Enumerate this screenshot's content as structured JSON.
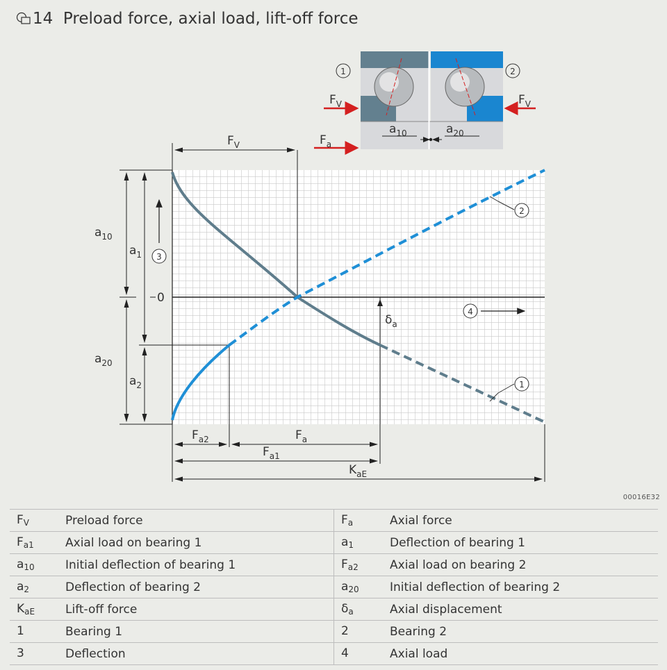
{
  "figure": {
    "caption_number": "14",
    "caption_text": "Preload force, axial load, lift-off force",
    "figure_id": "00016E32"
  },
  "diagram_labels": {
    "bearing1_callout": "1",
    "bearing2_callout": "2",
    "deflection_callout": "3",
    "axial_load_callout": "4",
    "preload_left": "F",
    "preload_left_sub": "V",
    "preload_right": "F",
    "preload_right_sub": "V",
    "axial_force_arrow": "F",
    "axial_force_arrow_sub": "a",
    "a10_small": "a",
    "a10_small_sub": "10",
    "a20_small": "a",
    "a20_small_sub": "20",
    "fv_top": "F",
    "fv_top_sub": "V",
    "a10": "a",
    "a10_sub": "10",
    "a1": "a",
    "a1_sub": "1",
    "zero": "0",
    "a20": "a",
    "a20_sub": "20",
    "a2": "a",
    "a2_sub": "2",
    "delta_a": "δ",
    "delta_a_sub": "a",
    "fa2": "F",
    "fa2_sub": "a2",
    "fa": "F",
    "fa_sub": "a",
    "fa1": "F",
    "fa1_sub": "a1",
    "kae": "K",
    "kae_sub": "aE"
  },
  "legend": [
    {
      "sym": "F",
      "sub": "V",
      "desc": "Preload force",
      "sym2": "F",
      "sub2": "a",
      "desc2": "Axial force"
    },
    {
      "sym": "F",
      "sub": "a1",
      "desc": "Axial load on bearing 1",
      "sym2": "a",
      "sub2": "1",
      "desc2": "Deflection of bearing 1"
    },
    {
      "sym": "a",
      "sub": "10",
      "desc": "Initial deflection of bearing 1",
      "sym2": "F",
      "sub2": "a2",
      "desc2": "Axial load on bearing 2"
    },
    {
      "sym": "a",
      "sub": "2",
      "desc": "Deflection of bearing 2",
      "sym2": "a",
      "sub2": "20",
      "desc2": "Initial deflection of bearing 2"
    },
    {
      "sym": "K",
      "sub": "aE",
      "desc": "Lift-off force",
      "sym2": "δ",
      "sub2": "a",
      "desc2": "Axial displacement"
    },
    {
      "sym": "1",
      "sub": "",
      "desc": "Bearing 1",
      "sym2": "2",
      "sub2": "",
      "desc2": "Bearing 2"
    },
    {
      "sym": "3",
      "sub": "",
      "desc": "Deflection",
      "sym2": "4",
      "sub2": "",
      "desc2": "Axial load"
    }
  ],
  "colors": {
    "bearing1_curve": "#5f7d8c",
    "bearing2_curve": "#1f8fd6",
    "bearing2_body": "#1a86d0",
    "bearing1_body": "#63808f",
    "force_arrow": "#d42020"
  }
}
